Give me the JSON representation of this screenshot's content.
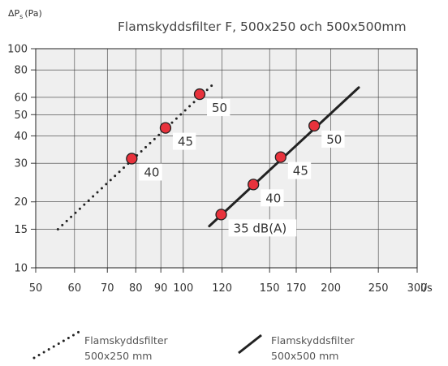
{
  "chart_data": {
    "type": "line",
    "title": "Flamskyddsfilter F, 500x250 och 500x500mm",
    "ylabel": {
      "main": "ΔP",
      "sub": "s",
      "unit": "(Pa)"
    },
    "xlabel": "l/s",
    "x_scale": "log",
    "y_scale": "log",
    "xlim": [
      50,
      300
    ],
    "ylim": [
      10,
      100
    ],
    "grid": true,
    "x_ticks": [
      50,
      60,
      70,
      80,
      90,
      100,
      120,
      150,
      170,
      200,
      250,
      300
    ],
    "y_ticks": [
      10,
      15,
      20,
      30,
      40,
      50,
      60,
      80,
      100
    ],
    "series": [
      {
        "name": "Flamskyddsfilter 500x250 mm",
        "style": "dotted",
        "color": "#222222",
        "line": [
          [
            55.5,
            15
          ],
          [
            116,
            70
          ]
        ],
        "points": [
          {
            "x": 78.5,
            "y": 31.5,
            "label": "40"
          },
          {
            "x": 92,
            "y": 43.5,
            "label": "45"
          },
          {
            "x": 108,
            "y": 62,
            "label": "50"
          }
        ]
      },
      {
        "name": "Flamskyddsfilter 500x500 mm",
        "style": "solid",
        "color": "#222222",
        "line": [
          [
            113,
            15.5
          ],
          [
            228,
            66.5
          ]
        ],
        "points": [
          {
            "x": 119.5,
            "y": 17.5,
            "label": "35 dB(A)"
          },
          {
            "x": 139,
            "y": 24,
            "label": "40"
          },
          {
            "x": 158,
            "y": 32,
            "label": "45"
          },
          {
            "x": 185,
            "y": 44.5,
            "label": "50"
          }
        ]
      }
    ],
    "marker_color": "#e8323c",
    "legend": {
      "placement": "bottom",
      "entries": [
        {
          "style": "dotted",
          "line1": "Flamskyddsfilter",
          "line2": "500x250 mm"
        },
        {
          "style": "solid",
          "line1": "Flamskyddsfilter",
          "line2": "500x500 mm"
        }
      ]
    }
  }
}
